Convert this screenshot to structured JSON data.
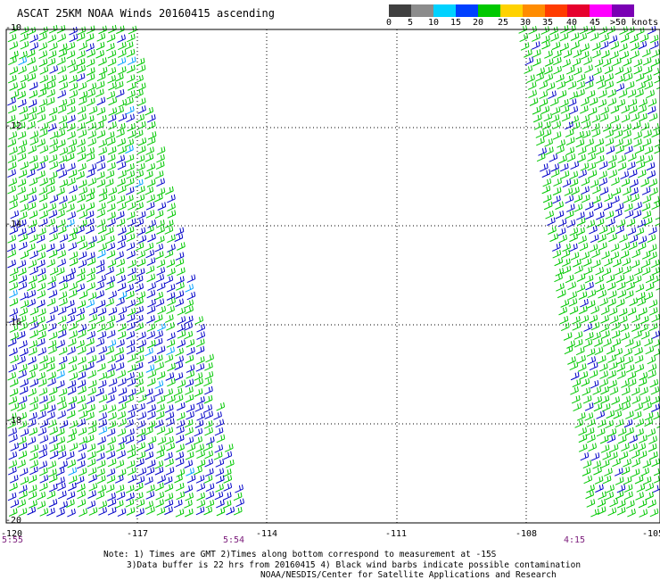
{
  "title": "ASCAT 25KM NOAA Winds 20160415 ascending",
  "scale": {
    "labels": [
      "0",
      "5",
      "10",
      "15",
      "20",
      "25",
      "30",
      "35",
      "40",
      "45",
      ">50 knots"
    ],
    "colors": [
      "#404040",
      "#8c8c8c",
      "#00d2ff",
      "#0040ff",
      "#00c800",
      "#ffd200",
      "#ff8c00",
      "#ff3c00",
      "#e6002d",
      "#ff00ff",
      "#7a00b4"
    ]
  },
  "latitudes": [
    "-10",
    "-12",
    "-14",
    "-16",
    "-18",
    "-20"
  ],
  "longitudes": [
    "-120",
    "-117",
    "-114",
    "-111",
    "-108",
    "-105"
  ],
  "times": [
    "5:55",
    "5:54",
    "4:15"
  ],
  "notes": {
    "line1": "Note: 1) Times are GMT 2)Times along bottom correspond to measurement at -15S",
    "line2": "3)Data buffer is 22 hrs from 20160415 4) Black wind barbs indicate possible contamination",
    "line3": "NOAA/NESDIS/Center for Satellite Applications and Research"
  },
  "barb_colors": {
    "green": "#00c800",
    "blue": "#0000c8",
    "light_blue": "#00a0ff"
  }
}
